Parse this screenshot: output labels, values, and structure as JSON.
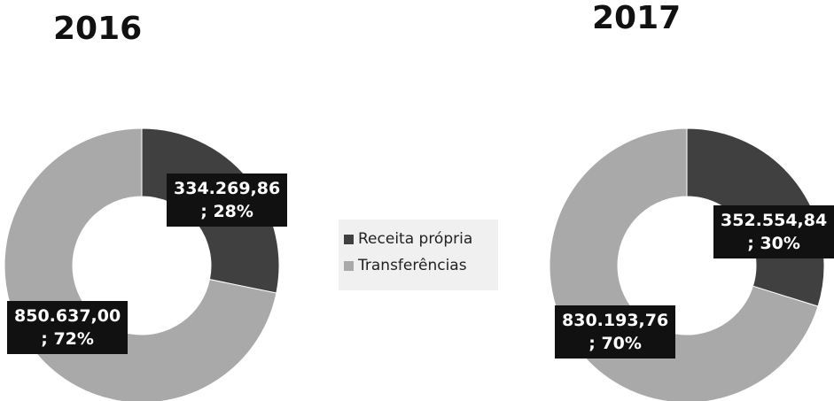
{
  "chart_data": [
    {
      "type": "donut",
      "title": "2016",
      "categories": [
        "Receita própria",
        "Transferências"
      ],
      "values": [
        334269.86,
        850637.0
      ],
      "value_labels": [
        "334.269,86\n; 28%",
        "850.637,00\n; 72%"
      ],
      "colors": [
        "#404040",
        "#a9a9a9"
      ]
    },
    {
      "type": "donut",
      "title": "2017",
      "categories": [
        "Receita própria",
        "Transferências"
      ],
      "values": [
        352554.84,
        830193.76
      ],
      "value_labels": [
        "352.554,84\n; 30%",
        "830.193,76\n; 70%"
      ],
      "colors": [
        "#404040",
        "#a9a9a9"
      ]
    }
  ]
}
